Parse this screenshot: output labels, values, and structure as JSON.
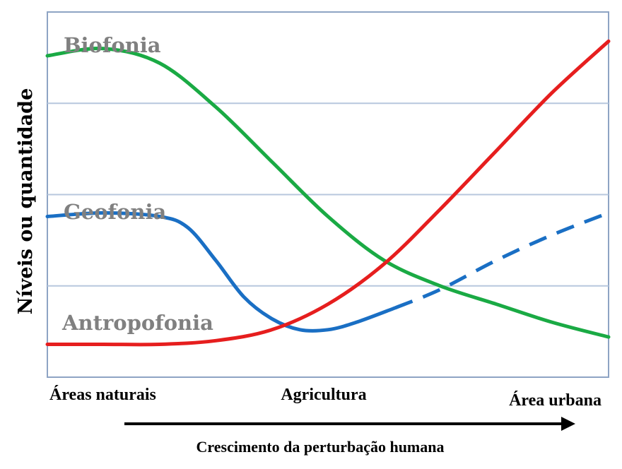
{
  "chart_data": {
    "type": "line",
    "ylabel": "Níveis ou quantidade",
    "xlabel": "Crescimento da perturbação humana",
    "categories": [
      "Áreas naturais",
      "Agricultura",
      "Área urbana"
    ],
    "x_range": [
      0,
      1
    ],
    "ylim": [
      0,
      1
    ],
    "grid": true,
    "series": [
      {
        "name": "Biofonia",
        "color": "#1aaa44",
        "style": "solid",
        "x": [
          0,
          0.1,
          0.2,
          0.3,
          0.4,
          0.5,
          0.6,
          0.7,
          0.8,
          0.9,
          1.0
        ],
        "y": [
          0.88,
          0.9,
          0.86,
          0.74,
          0.59,
          0.44,
          0.32,
          0.25,
          0.2,
          0.15,
          0.11
        ]
      },
      {
        "name": "Geofonia",
        "color": "#1a6fc4",
        "style": "solid-then-dashed",
        "dash_from_x": 0.62,
        "x": [
          0,
          0.1,
          0.2,
          0.25,
          0.3,
          0.35,
          0.4,
          0.45,
          0.5,
          0.55,
          0.62,
          0.7,
          0.8,
          0.9,
          1.0
        ],
        "y": [
          0.44,
          0.45,
          0.44,
          0.41,
          0.32,
          0.22,
          0.16,
          0.13,
          0.13,
          0.15,
          0.19,
          0.24,
          0.32,
          0.39,
          0.45
        ]
      },
      {
        "name": "Antropofonia",
        "color": "#e61e1e",
        "style": "solid",
        "x": [
          0,
          0.1,
          0.2,
          0.3,
          0.4,
          0.5,
          0.6,
          0.7,
          0.8,
          0.9,
          1.0
        ],
        "y": [
          0.09,
          0.09,
          0.09,
          0.1,
          0.13,
          0.2,
          0.31,
          0.46,
          0.62,
          0.78,
          0.92
        ]
      }
    ]
  }
}
